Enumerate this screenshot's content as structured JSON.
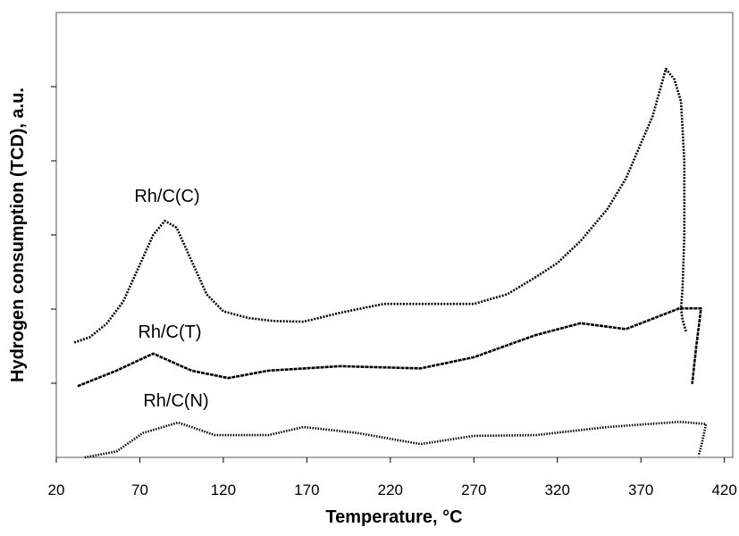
{
  "chart_data": {
    "type": "line",
    "x_label": "Temperature, °C",
    "y_label": "Hydrogen consumption (TCD), a.u.",
    "xlim": [
      20,
      425
    ],
    "ylim": [
      0,
      6
    ],
    "xticks": [
      20,
      70,
      120,
      170,
      220,
      270,
      320,
      370,
      420
    ],
    "series": [
      {
        "name": "Rh/C(C)",
        "color": "#000000",
        "x": [
          30.7,
          40,
          50,
          60,
          70,
          78,
          85,
          92,
          100,
          110,
          120,
          135,
          150,
          168,
          190,
          216,
          240,
          270,
          290,
          307,
          320,
          334,
          350,
          361,
          377,
          385,
          390,
          394,
          396,
          396,
          395,
          394,
          395,
          397
        ],
        "values": [
          1.55,
          1.62,
          1.8,
          2.1,
          2.6,
          3.0,
          3.19,
          3.1,
          2.7,
          2.2,
          1.97,
          1.88,
          1.84,
          1.83,
          1.95,
          2.07,
          2.07,
          2.07,
          2.2,
          2.43,
          2.62,
          2.92,
          3.35,
          3.76,
          4.6,
          5.24,
          5.1,
          4.8,
          4.0,
          3.0,
          2.3,
          2.0,
          1.85,
          1.7
        ]
      },
      {
        "name": "Rh/C(T)",
        "color": "#000000",
        "x": [
          32.8,
          56,
          78,
          101,
          123,
          147,
          190,
          238,
          270,
          307,
          334,
          361,
          393,
          406,
          403,
          400.7
        ],
        "values": [
          0.96,
          1.17,
          1.4,
          1.17,
          1.07,
          1.17,
          1.23,
          1.2,
          1.35,
          1.65,
          1.81,
          1.73,
          2.01,
          2.01,
          1.47,
          0.99
        ]
      },
      {
        "name": "Rh/C(N)",
        "color": "#000000",
        "x": [
          37,
          56,
          72,
          93,
          115,
          147,
          168,
          200,
          238,
          270,
          307,
          350,
          393,
          409,
          406,
          404.5
        ],
        "values": [
          0,
          0.08,
          0.33,
          0.47,
          0.3,
          0.3,
          0.41,
          0.33,
          0.18,
          0.29,
          0.3,
          0.41,
          0.48,
          0.45,
          0.14,
          0.02
        ]
      }
    ]
  }
}
